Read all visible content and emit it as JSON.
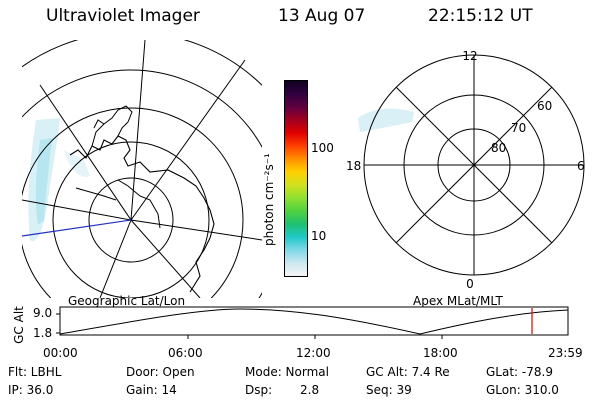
{
  "header": {
    "instrument": "Ultraviolet Imager",
    "date": "13 Aug 07",
    "time": "22:15:12 UT"
  },
  "colorbar": {
    "unit_label": "photon cm⁻²s⁻¹",
    "ticks": [
      "100",
      "10"
    ],
    "colors": [
      "#f5f5f5",
      "#cce8f0",
      "#80d8e8",
      "#20c8c8",
      "#20c070",
      "#50d040",
      "#90e030",
      "#d0e020",
      "#ffd000",
      "#ff9000",
      "#ff4000",
      "#e00000",
      "#a00020",
      "#600040",
      "#300040",
      "#100020"
    ]
  },
  "geo_map": {
    "caption": "Geographic Lat/Lon"
  },
  "apex_map": {
    "caption": "Apex MLat/MLT",
    "mlt_labels": {
      "top": "12",
      "left": "18",
      "right": "6",
      "bottom": "0"
    },
    "lat_labels": [
      "60",
      "70",
      "80"
    ]
  },
  "altitude_plot": {
    "ylabel": "GC Alt",
    "yticks": [
      "9.0",
      "1.8"
    ],
    "xticks": [
      "00:00",
      "06:00",
      "12:00",
      "18:00",
      "23:59"
    ],
    "marker_color": "#e00000"
  },
  "info": {
    "flt": "Flt: LBHL",
    "ip": "IP: 36.0",
    "door": "Door: Open",
    "gain": "Gain: 14",
    "mode": "Mode: Normal",
    "dsp_label": "Dsp:",
    "dsp_value": "2.8",
    "gcalt": "GC Alt: 7.4 Re",
    "seq": "Seq: 39",
    "glat": "GLat: -78.9",
    "glon": "GLon: 310.0"
  }
}
